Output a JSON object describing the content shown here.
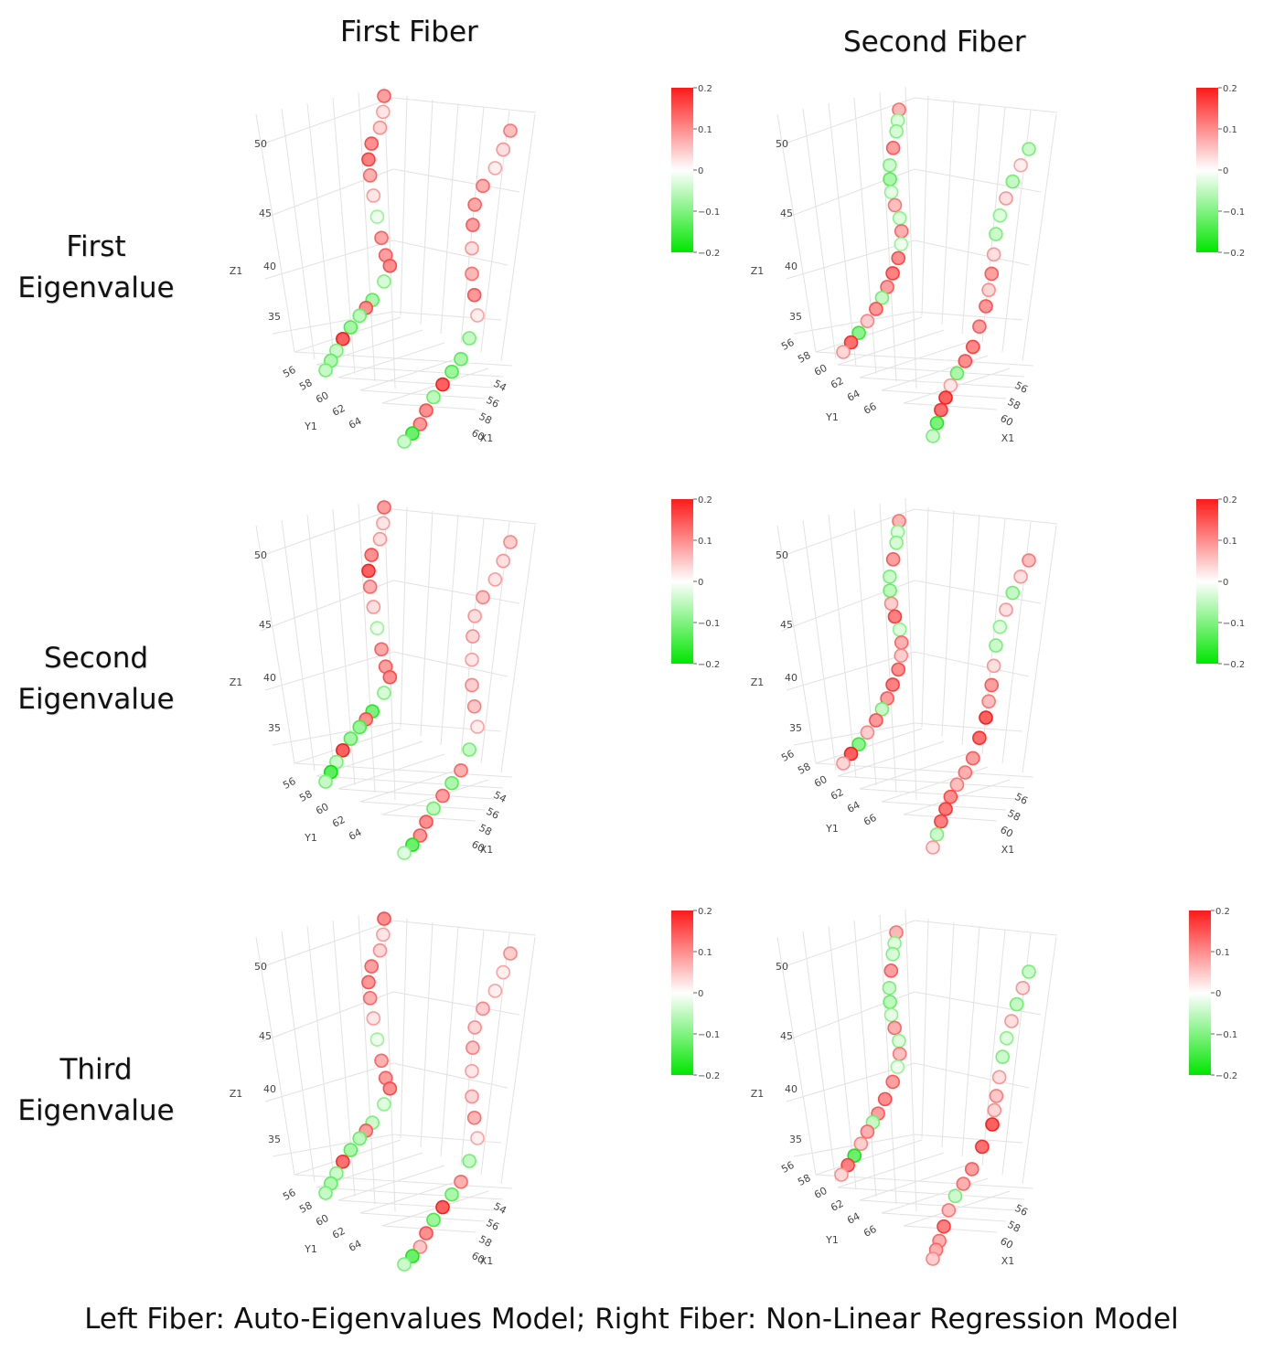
{
  "headers": {
    "col1": "First Fiber",
    "col2": "Second Fiber"
  },
  "rows": [
    {
      "line1": "First",
      "line2": "Eigenvalue"
    },
    {
      "line1": "Second",
      "line2": "Eigenvalue"
    },
    {
      "line1": "Third",
      "line2": "Eigenvalue"
    }
  ],
  "caption": "Left Fiber: Auto-Eigenvalues Model; Right Fiber: Non-Linear Regression Model",
  "chart_data": {
    "type": "scatter",
    "colorscale": {
      "low": "#00e600",
      "mid": "#ffffff",
      "high": "#ff1a1a",
      "min": -0.2,
      "max": 0.2,
      "ticks": [
        "0.2",
        "0.1",
        "0",
        "−0.1",
        "−0.2"
      ]
    },
    "axes": {
      "z": {
        "label": "Z1",
        "ticks": [
          "35",
          "40",
          "45",
          "50"
        ]
      },
      "y": {
        "label": "Y1",
        "ticks": [
          "56",
          "58",
          "60",
          "62",
          "64"
        ]
      },
      "x": {
        "label": "X1",
        "ticks": [
          "54",
          "56",
          "58",
          "60"
        ]
      },
      "y_second": {
        "label": "Y1",
        "ticks": [
          "56",
          "58",
          "60",
          "62",
          "64",
          "66"
        ]
      },
      "x_second": {
        "label": "X1",
        "ticks": [
          "56",
          "58",
          "60"
        ]
      }
    },
    "panels": [
      {
        "row": "First Eigenvalue",
        "column": "First Fiber",
        "values": [
          0.12,
          0.03,
          0.05,
          0.14,
          0.16,
          0.1,
          0.03,
          -0.02,
          0.11,
          0.12,
          0.14,
          -0.05,
          -0.1,
          0.14,
          -0.08,
          -0.11,
          0.2,
          -0.06,
          -0.09,
          -0.07,
          0.08,
          0.04,
          0.02,
          0.1,
          0.11,
          0.12,
          0.04,
          0.09,
          0.13,
          0.02,
          -0.07,
          -0.1,
          -0.12,
          0.2,
          -0.08,
          0.14,
          0.13,
          -0.18,
          -0.06
        ]
      },
      {
        "row": "First Eigenvalue",
        "column": "Second Fiber",
        "values": [
          0.09,
          -0.04,
          -0.05,
          0.12,
          -0.06,
          -0.1,
          -0.03,
          0.08,
          -0.04,
          0.1,
          -0.02,
          0.14,
          0.16,
          0.12,
          -0.07,
          0.13,
          0.06,
          -0.14,
          0.18,
          0.05,
          -0.06,
          0.02,
          -0.07,
          0.04,
          -0.04,
          -0.06,
          0.04,
          0.12,
          0.05,
          0.13,
          0.12,
          0.15,
          0.14,
          -0.1,
          0.03,
          0.2,
          0.18,
          -0.16,
          -0.06
        ]
      },
      {
        "row": "Second Eigenvalue",
        "column": "First Fiber",
        "values": [
          0.12,
          0.03,
          0.04,
          0.14,
          0.2,
          0.1,
          0.04,
          -0.02,
          0.11,
          0.12,
          0.14,
          -0.05,
          -0.16,
          0.14,
          -0.12,
          -0.11,
          0.2,
          -0.06,
          -0.2,
          -0.07,
          0.06,
          0.04,
          0.03,
          0.07,
          0.04,
          0.05,
          0.03,
          0.06,
          0.07,
          0.02,
          -0.07,
          0.1,
          -0.1,
          0.12,
          -0.08,
          0.14,
          0.13,
          -0.18,
          -0.04
        ]
      },
      {
        "row": "Second Eigenvalue",
        "column": "Second Fiber",
        "values": [
          0.09,
          -0.04,
          -0.05,
          0.12,
          -0.06,
          -0.08,
          0.06,
          0.16,
          -0.04,
          0.1,
          0.06,
          0.14,
          0.16,
          0.12,
          -0.07,
          0.13,
          0.06,
          -0.14,
          0.2,
          0.05,
          0.08,
          0.04,
          -0.07,
          0.04,
          -0.04,
          -0.06,
          0.04,
          0.12,
          0.08,
          0.2,
          0.18,
          0.12,
          0.1,
          0.08,
          0.14,
          0.17,
          0.16,
          -0.06,
          0.04
        ]
      },
      {
        "row": "Third Eigenvalue",
        "column": "First Fiber",
        "values": [
          0.14,
          0.03,
          0.05,
          0.12,
          0.13,
          0.1,
          0.03,
          -0.02,
          0.1,
          0.12,
          0.14,
          -0.04,
          -0.06,
          0.12,
          -0.08,
          -0.1,
          0.18,
          -0.06,
          -0.09,
          -0.07,
          0.06,
          0.02,
          0.02,
          0.06,
          0.05,
          0.07,
          0.03,
          0.05,
          0.09,
          0.02,
          -0.07,
          0.1,
          -0.1,
          0.2,
          -0.12,
          0.14,
          0.07,
          -0.18,
          -0.06
        ]
      },
      {
        "row": "Third Eigenvalue",
        "column": "Second Fiber",
        "values": [
          0.09,
          -0.04,
          -0.05,
          0.12,
          -0.06,
          -0.08,
          -0.03,
          0.1,
          -0.04,
          0.08,
          -0.02,
          0.12,
          0.14,
          0.12,
          -0.07,
          0.1,
          0.06,
          -0.18,
          0.16,
          0.05,
          -0.06,
          0.04,
          -0.07,
          0.04,
          -0.04,
          -0.06,
          0.04,
          0.07,
          0.05,
          0.2,
          0.18,
          0.12,
          0.1,
          -0.06,
          0.08,
          0.16,
          0.1,
          0.1,
          0.06
        ]
      }
    ]
  }
}
